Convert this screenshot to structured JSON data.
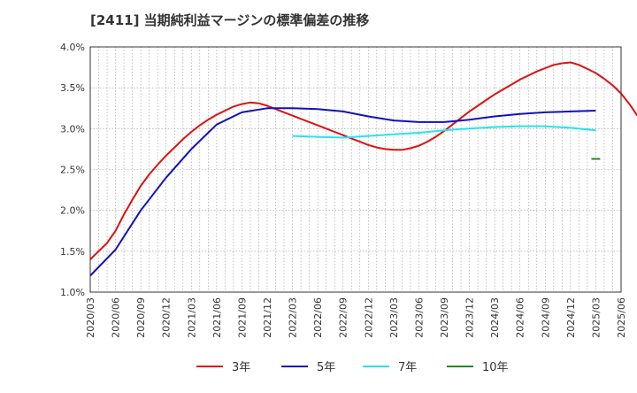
{
  "chart_data": {
    "type": "line",
    "title": "[2411]  当期純利益マージンの標準偏差の推移",
    "xlabel": "",
    "ylabel": "",
    "ylim": [
      0.01,
      0.04
    ],
    "y_ticks": [
      0.01,
      0.015,
      0.02,
      0.025,
      0.03,
      0.035,
      0.04
    ],
    "y_tick_labels": [
      "1.0%",
      "1.5%",
      "2.0%",
      "2.5%",
      "3.0%",
      "3.5%",
      "4.0%"
    ],
    "x_tick_labels": [
      "2020/03",
      "2020/06",
      "2020/09",
      "2020/12",
      "2021/03",
      "2021/06",
      "2021/09",
      "2021/12",
      "2022/03",
      "2022/06",
      "2022/09",
      "2022/12",
      "2023/03",
      "2023/06",
      "2023/09",
      "2023/12",
      "2024/03",
      "2024/06",
      "2024/09",
      "2024/12",
      "2025/03",
      "2025/06"
    ],
    "grid": true,
    "legend_position": "bottom",
    "series": [
      {
        "name": "3年",
        "color": "#dd1111",
        "points": [
          [
            "2020/03",
            0.014
          ],
          [
            "2020/04",
            0.015
          ],
          [
            "2020/05",
            0.016
          ],
          [
            "2020/06",
            0.0175
          ],
          [
            "2020/07",
            0.0195
          ],
          [
            "2020/08",
            0.0213
          ],
          [
            "2020/09",
            0.023
          ],
          [
            "2020/10",
            0.0244
          ],
          [
            "2020/11",
            0.0256
          ],
          [
            "2020/12",
            0.0267
          ],
          [
            "2021/01",
            0.0277
          ],
          [
            "2021/02",
            0.0287
          ],
          [
            "2021/03",
            0.0296
          ],
          [
            "2021/04",
            0.0304
          ],
          [
            "2021/05",
            0.0311
          ],
          [
            "2021/06",
            0.0317
          ],
          [
            "2021/07",
            0.0322
          ],
          [
            "2021/08",
            0.0327
          ],
          [
            "2021/09",
            0.033
          ],
          [
            "2021/10",
            0.0332
          ],
          [
            "2021/11",
            0.0331
          ],
          [
            "2021/12",
            0.0328
          ],
          [
            "2022/01",
            0.0324
          ],
          [
            "2022/02",
            0.032
          ],
          [
            "2022/03",
            0.0316
          ],
          [
            "2022/04",
            0.0312
          ],
          [
            "2022/05",
            0.0308
          ],
          [
            "2022/06",
            0.0304
          ],
          [
            "2022/07",
            0.03
          ],
          [
            "2022/08",
            0.0296
          ],
          [
            "2022/09",
            0.0292
          ],
          [
            "2022/10",
            0.0288
          ],
          [
            "2022/11",
            0.0284
          ],
          [
            "2022/12",
            0.028
          ],
          [
            "2023/01",
            0.0277
          ],
          [
            "2023/02",
            0.0275
          ],
          [
            "2023/03",
            0.0274
          ],
          [
            "2023/04",
            0.0274
          ],
          [
            "2023/05",
            0.0276
          ],
          [
            "2023/06",
            0.0279
          ],
          [
            "2023/07",
            0.0284
          ],
          [
            "2023/08",
            0.029
          ],
          [
            "2023/09",
            0.0297
          ],
          [
            "2023/10",
            0.0305
          ],
          [
            "2023/11",
            0.0313
          ],
          [
            "2023/12",
            0.0321
          ],
          [
            "2024/01",
            0.0328
          ],
          [
            "2024/02",
            0.0335
          ],
          [
            "2024/03",
            0.0342
          ],
          [
            "2024/04",
            0.0348
          ],
          [
            "2024/05",
            0.0354
          ],
          [
            "2024/06",
            0.036
          ],
          [
            "2024/07",
            0.0365
          ],
          [
            "2024/08",
            0.037
          ],
          [
            "2024/09",
            0.0374
          ],
          [
            "2024/10",
            0.0378
          ],
          [
            "2024/11",
            0.038
          ],
          [
            "2024/12",
            0.0381
          ],
          [
            "2025/01",
            0.0378
          ],
          [
            "2025/02",
            0.0373
          ],
          [
            "2025/03",
            0.0368
          ],
          [
            "2025/04",
            0.0361
          ],
          [
            "2025/05",
            0.0353
          ],
          [
            "2025/06",
            0.0343
          ],
          [
            "2025/07",
            0.033
          ],
          [
            "2025/08",
            0.0315
          ]
        ]
      },
      {
        "name": "5年",
        "color": "#1111bb",
        "points": [
          [
            "2020/03",
            0.012
          ],
          [
            "2020/06",
            0.0152
          ],
          [
            "2020/09",
            0.02
          ],
          [
            "2020/12",
            0.024
          ],
          [
            "2021/03",
            0.0275
          ],
          [
            "2021/06",
            0.0305
          ],
          [
            "2021/09",
            0.032
          ],
          [
            "2021/12",
            0.0325
          ],
          [
            "2022/03",
            0.0325
          ],
          [
            "2022/06",
            0.0324
          ],
          [
            "2022/09",
            0.0321
          ],
          [
            "2022/12",
            0.0315
          ],
          [
            "2023/03",
            0.031
          ],
          [
            "2023/06",
            0.0308
          ],
          [
            "2023/09",
            0.0308
          ],
          [
            "2023/12",
            0.0311
          ],
          [
            "2024/03",
            0.0315
          ],
          [
            "2024/06",
            0.0318
          ],
          [
            "2024/09",
            0.032
          ],
          [
            "2024/12",
            0.0321
          ],
          [
            "2025/03",
            0.0322
          ]
        ]
      },
      {
        "name": "7年",
        "color": "#22e5ee",
        "points": [
          [
            "2022/03",
            0.0291
          ],
          [
            "2022/06",
            0.029
          ],
          [
            "2022/09",
            0.0289
          ],
          [
            "2022/12",
            0.0291
          ],
          [
            "2023/03",
            0.0293
          ],
          [
            "2023/06",
            0.0295
          ],
          [
            "2023/09",
            0.0298
          ],
          [
            "2023/12",
            0.03
          ],
          [
            "2024/03",
            0.0302
          ],
          [
            "2024/06",
            0.0303
          ],
          [
            "2024/09",
            0.0303
          ],
          [
            "2024/12",
            0.0301
          ],
          [
            "2025/03",
            0.0298
          ]
        ]
      },
      {
        "name": "10年",
        "color": "#228822",
        "points": [
          [
            "2025/03",
            0.0263
          ]
        ]
      }
    ]
  }
}
